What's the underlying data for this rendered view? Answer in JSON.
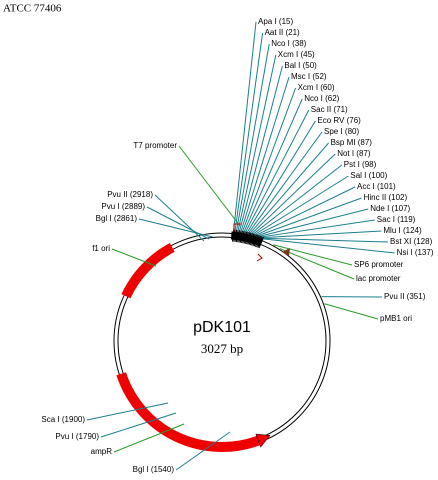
{
  "header": {
    "strain": "ATCC 77406"
  },
  "plasmid": {
    "name": "pDK101",
    "size": "3027 bp"
  },
  "top_sites": [
    "Apa I (15)",
    "Aat II (21)",
    "Nco I (38)",
    "Xcm I (45)",
    "Bal I (50)",
    "Msc I (52)",
    "Xcm I (60)",
    "Nco I (62)",
    "Sac II (71)",
    "Eco RV (76)",
    "Spe I (80)",
    "Bsp MI (87)",
    "Not I (87)",
    "Pst I (98)",
    "Sal I (100)",
    "Acc I (101)",
    "Hinc II (102)",
    "Nde I (107)",
    "Sac I (119)",
    "Mlu I (124)",
    "Bst XI (128)",
    "Nsi I (137)"
  ],
  "right_labels": [
    "SP6 promoter",
    "lac promoter",
    "Pvu II (351)",
    "pMB1 ori"
  ],
  "left_labels": [
    "T7 promoter",
    "Pvu II (2918)",
    "Pvu I (2889)",
    "Bgl I (2861)",
    "f1 ori",
    "Sca I (1900)",
    "Pvu I (1790)",
    "ampR",
    "Bgl I (1540)"
  ]
}
